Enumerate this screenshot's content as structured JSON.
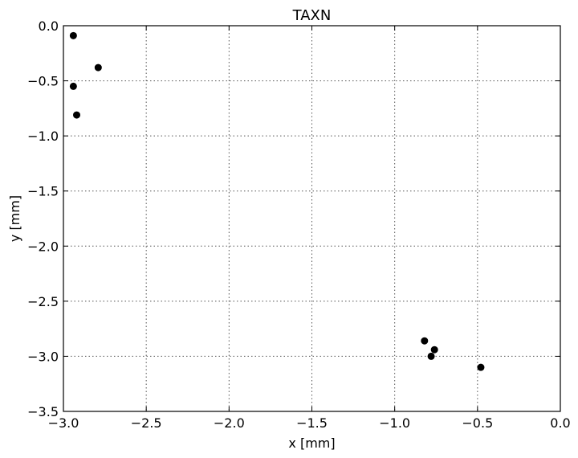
{
  "chart_data": {
    "type": "scatter",
    "title": "TAXN",
    "xlabel": "x [mm]",
    "ylabel": "y [mm]",
    "xlim": [
      -3.0,
      0.0
    ],
    "ylim": [
      -3.5,
      0.0
    ],
    "x_ticks": [
      -3.0,
      -2.5,
      -2.0,
      -1.5,
      -1.0,
      -0.5,
      0.0
    ],
    "x_tick_labels": [
      "−3.0",
      "−2.5",
      "−2.0",
      "−1.5",
      "−1.0",
      "−0.5",
      "0.0"
    ],
    "y_ticks": [
      0.0,
      -0.5,
      -1.0,
      -1.5,
      -2.0,
      -2.5,
      -3.0,
      -3.5
    ],
    "y_tick_labels": [
      "0.0",
      "−0.5",
      "−1.0",
      "−1.5",
      "−2.0",
      "−2.5",
      "−3.0",
      "−3.5"
    ],
    "grid": true,
    "marker_color": "#000000",
    "points": [
      {
        "x": -2.94,
        "y": -0.09
      },
      {
        "x": -2.79,
        "y": -0.38
      },
      {
        "x": -2.94,
        "y": -0.55
      },
      {
        "x": -2.92,
        "y": -0.81
      },
      {
        "x": -0.82,
        "y": -2.86
      },
      {
        "x": -0.76,
        "y": -2.94
      },
      {
        "x": -0.78,
        "y": -3.0
      },
      {
        "x": -0.48,
        "y": -3.1
      }
    ]
  }
}
